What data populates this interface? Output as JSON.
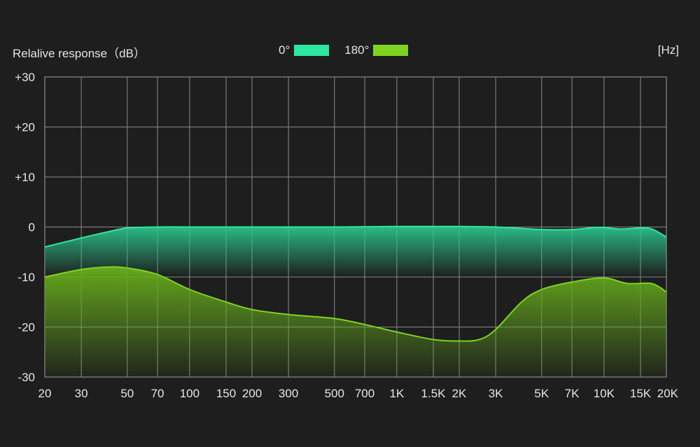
{
  "chart_data": {
    "type": "area",
    "ylabel": "Relalive response（dB）",
    "x_unit": "[Hz]",
    "xscale": "log",
    "xlim": [
      20,
      20000
    ],
    "ylim": [
      -30,
      30
    ],
    "yticks": [
      30,
      20,
      10,
      0,
      -10,
      -20,
      -30
    ],
    "ytick_labels": [
      "+30",
      "+20",
      "+10",
      "0",
      "-10",
      "-20",
      "-30"
    ],
    "xticks": [
      20,
      30,
      50,
      70,
      100,
      150,
      200,
      300,
      500,
      700,
      1000,
      1500,
      2000,
      3000,
      5000,
      7000,
      10000,
      15000,
      20000
    ],
    "xtick_labels": [
      "20",
      "30",
      "50",
      "70",
      "100",
      "150",
      "200",
      "300",
      "500",
      "700",
      "1K",
      "1.5K",
      "2K",
      "3K",
      "5K",
      "7K",
      "10K",
      "15K",
      "20K"
    ],
    "grid": true,
    "legend_position": "top",
    "series": [
      {
        "name": "0°",
        "color": "#2ee6a0",
        "x": [
          20,
          30,
          40,
          50,
          70,
          100,
          200,
          500,
          1000,
          2000,
          3000,
          5000,
          7000,
          9000,
          10000,
          12000,
          15000,
          17000,
          20000
        ],
        "y": [
          -4,
          -2.2,
          -1,
          -0.2,
          0,
          0,
          0,
          0,
          0.1,
          0.1,
          0,
          -0.5,
          -0.5,
          -0.1,
          -0.1,
          -0.4,
          -0.2,
          -0.4,
          -2
        ]
      },
      {
        "name": "180°",
        "color": "#7ed321",
        "x": [
          20,
          30,
          40,
          50,
          70,
          100,
          150,
          200,
          300,
          500,
          700,
          1000,
          1500,
          2000,
          2500,
          3000,
          4000,
          5000,
          7000,
          10000,
          13000,
          17000,
          20000
        ],
        "y": [
          -10,
          -8.5,
          -8,
          -8.2,
          -9.5,
          -12.5,
          -15,
          -16.5,
          -17.5,
          -18.3,
          -19.5,
          -21,
          -22.5,
          -22.8,
          -22.5,
          -20.5,
          -15,
          -12.5,
          -11,
          -10.2,
          -11.3,
          -11.3,
          -13
        ]
      }
    ]
  }
}
